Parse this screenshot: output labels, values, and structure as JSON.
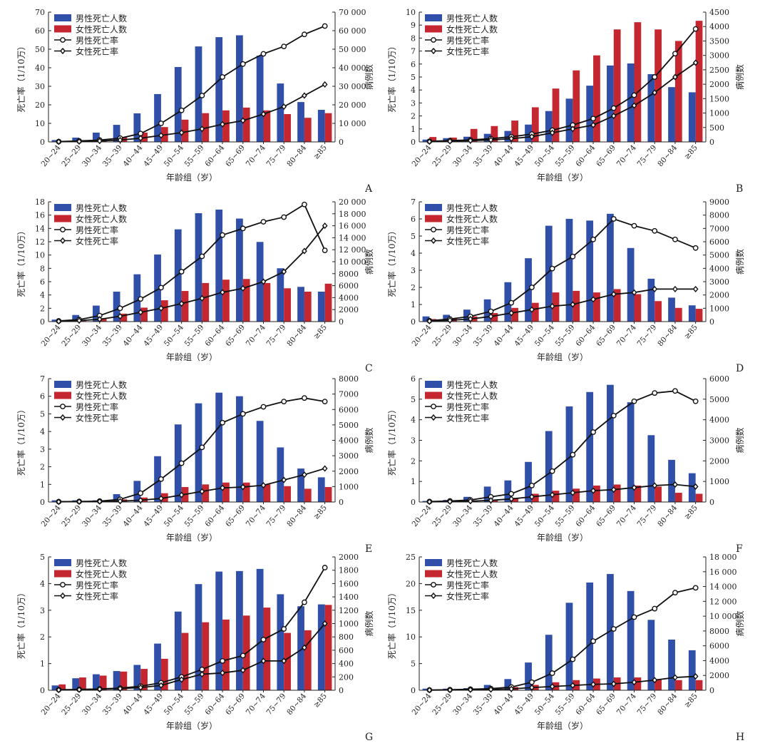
{
  "chart_data": {
    "type": "bar+line",
    "common": {
      "categories": [
        "20~24",
        "25~29",
        "30~34",
        "35~39",
        "40~44",
        "45~49",
        "50~54",
        "55~59",
        "60~64",
        "65~69",
        "70~74",
        "75~79",
        "80~84",
        "≥85"
      ],
      "xlabel": "年龄组（岁）",
      "ylabel_left": "死亡率（1/10万）",
      "ylabel_right": "病例数",
      "legend": [
        "男性死亡人数",
        "女性死亡人数",
        "男性死亡率",
        "女性死亡率"
      ],
      "legend_placement": "top-left",
      "colors": {
        "male_bar": "#2f4fa8",
        "female_bar": "#c4272f",
        "line": "#111111"
      }
    },
    "panels": [
      {
        "label": "A",
        "ylim_left": [
          0,
          70
        ],
        "step_left": 10,
        "ylim_right": [
          0,
          70000
        ],
        "step_right": 10000,
        "male_deaths": [
          1000,
          2300,
          5000,
          9200,
          15400,
          25800,
          40400,
          51500,
          56500,
          57500,
          46500,
          31500,
          21500,
          17300
        ],
        "female_deaths": [
          300,
          500,
          1000,
          2500,
          5000,
          8000,
          12000,
          15500,
          17000,
          18500,
          17000,
          15000,
          13000,
          15500
        ],
        "male_rate": [
          0.2,
          0.5,
          1,
          2,
          4.5,
          10,
          17,
          25,
          35,
          42,
          47.5,
          51.5,
          58,
          62.5
        ],
        "female_rate": [
          0.1,
          0.2,
          0.5,
          1,
          2,
          3.5,
          5,
          7,
          9.5,
          11.5,
          15,
          19,
          25,
          31
        ]
      },
      {
        "label": "B",
        "ylim_left": [
          0,
          10
        ],
        "step_left": 1,
        "ylim_right": [
          0,
          4500
        ],
        "step_right": 500,
        "male_deaths": [
          80,
          130,
          180,
          280,
          380,
          600,
          1070,
          1500,
          1950,
          2650,
          2720,
          2350,
          1900,
          1720
        ],
        "female_deaths": [
          170,
          150,
          450,
          550,
          740,
          1200,
          1850,
          2480,
          3000,
          3900,
          4150,
          3900,
          3500,
          4200
        ],
        "male_rate": [
          0.05,
          0.1,
          0.15,
          0.25,
          0.4,
          0.6,
          0.9,
          1.3,
          1.8,
          2.6,
          3.6,
          5,
          6.8,
          8.7
        ],
        "female_rate": [
          0.02,
          0.05,
          0.1,
          0.15,
          0.25,
          0.4,
          0.7,
          1,
          1.3,
          2,
          2.8,
          3.8,
          5,
          6.1
        ]
      },
      {
        "label": "C",
        "ylim_left": [
          0,
          18
        ],
        "step_left": 2,
        "ylim_right": [
          0,
          20000
        ],
        "step_right": 2000,
        "male_deaths": [
          330,
          1100,
          2670,
          5000,
          7900,
          11200,
          15400,
          18100,
          18700,
          17200,
          13300,
          8900,
          5800,
          5000
        ],
        "female_deaths": [
          110,
          220,
          560,
          1330,
          2330,
          3560,
          5110,
          6440,
          7000,
          7110,
          6440,
          5560,
          5000,
          6330
        ],
        "male_rate": [
          0.1,
          0.3,
          0.9,
          2,
          3.4,
          5.1,
          7.5,
          9.8,
          13,
          14,
          15,
          15.7,
          17.6,
          10.7
        ],
        "female_rate": [
          0.05,
          0.15,
          0.35,
          0.8,
          1.4,
          2,
          2.7,
          3.5,
          4.4,
          5,
          6,
          7.5,
          10.6,
          14.4
        ]
      },
      {
        "label": "D",
        "ylim_left": [
          0,
          7
        ],
        "step_left": 1,
        "ylim_right": [
          0,
          9000
        ],
        "step_right": 1000,
        "male_deaths": [
          390,
          510,
          900,
          1670,
          2960,
          4760,
          7200,
          7720,
          7590,
          8100,
          5530,
          3220,
          1800,
          1220
        ],
        "female_deaths": [
          190,
          260,
          390,
          640,
          1030,
          1410,
          2190,
          2310,
          2190,
          2440,
          2060,
          1540,
          1030,
          960
        ],
        "male_rate": [
          0.05,
          0.15,
          0.3,
          0.6,
          1.1,
          2,
          3.1,
          3.8,
          4.8,
          6,
          5.6,
          5.3,
          4.8,
          4.3
        ],
        "female_rate": [
          0.03,
          0.08,
          0.15,
          0.3,
          0.5,
          0.7,
          0.9,
          1,
          1.3,
          1.6,
          1.7,
          1.9,
          1.9,
          1.9
        ]
      },
      {
        "label": "E",
        "ylim_left": [
          0,
          7
        ],
        "step_left": 1,
        "ylim_right": [
          0,
          8000
        ],
        "step_right": 1000,
        "male_deaths": [
          110,
          110,
          110,
          510,
          1370,
          2970,
          5030,
          6400,
          7090,
          6860,
          5260,
          3540,
          2170,
          1600
        ],
        "female_deaths": [
          60,
          60,
          110,
          170,
          290,
          570,
          970,
          1140,
          1260,
          1260,
          1140,
          1030,
          860,
          970
        ],
        "male_rate": [
          0.02,
          0.03,
          0.05,
          0.15,
          0.5,
          1.3,
          2.2,
          3.1,
          4.5,
          5,
          5.4,
          5.7,
          5.9,
          5.7
        ],
        "female_rate": [
          0.01,
          0.02,
          0.03,
          0.05,
          0.1,
          0.2,
          0.4,
          0.6,
          0.8,
          0.85,
          0.95,
          1.25,
          1.55,
          1.9
        ]
      },
      {
        "label": "F",
        "ylim_left": [
          0,
          6
        ],
        "step_left": 1,
        "ylim_right": [
          0,
          6000
        ],
        "step_right": 1000,
        "male_deaths": [
          50,
          100,
          250,
          750,
          1050,
          1950,
          3450,
          4650,
          5350,
          5700,
          4850,
          3250,
          2050,
          1400
        ],
        "female_deaths": [
          30,
          50,
          80,
          100,
          200,
          400,
          550,
          650,
          800,
          850,
          800,
          750,
          450,
          400
        ],
        "male_rate": [
          0.02,
          0.05,
          0.1,
          0.25,
          0.4,
          0.8,
          1.5,
          2.3,
          3.4,
          4.2,
          4.9,
          5.3,
          5.4,
          4.9
        ],
        "female_rate": [
          0.01,
          0.02,
          0.04,
          0.08,
          0.15,
          0.25,
          0.35,
          0.45,
          0.55,
          0.6,
          0.7,
          0.8,
          0.85,
          0.75
        ]
      },
      {
        "label": "G",
        "ylim_left": [
          0,
          5
        ],
        "step_left": 1,
        "ylim_right": [
          0,
          2000
        ],
        "step_right": 200,
        "male_deaths": [
          72,
          180,
          240,
          288,
          380,
          700,
          1180,
          1592,
          1780,
          1788,
          1820,
          1440,
          1260,
          1288
        ],
        "female_deaths": [
          88,
          192,
          220,
          280,
          320,
          472,
          860,
          1020,
          1060,
          1120,
          1240,
          860,
          900,
          1280
        ],
        "male_rate": [
          0.02,
          0.03,
          0.05,
          0.08,
          0.15,
          0.28,
          0.5,
          0.78,
          1.1,
          1.3,
          1.9,
          2.3,
          3.3,
          4.6
        ],
        "female_rate": [
          0.01,
          0.02,
          0.04,
          0.06,
          0.1,
          0.18,
          0.4,
          0.6,
          0.65,
          0.75,
          1.1,
          1.1,
          1.6,
          2.5
        ]
      },
      {
        "label": "H",
        "ylim_left": [
          0,
          25
        ],
        "step_left": 5,
        "ylim_right": [
          0,
          18000
        ],
        "step_right": 2000,
        "male_deaths": [
          216,
          216,
          288,
          720,
          1512,
          3744,
          7488,
          11808,
          14544,
          15696,
          13392,
          9504,
          6840,
          5400
        ],
        "female_deaths": [
          72,
          72,
          144,
          216,
          432,
          720,
          1080,
          1368,
          1584,
          1728,
          1728,
          1512,
          1368,
          1368
        ],
        "male_rate": [
          0.05,
          0.1,
          0.2,
          0.3,
          0.6,
          1.5,
          3.2,
          5.8,
          9.2,
          11.5,
          13.7,
          15.3,
          18.3,
          19.2
        ],
        "female_rate": [
          0.02,
          0.05,
          0.1,
          0.15,
          0.25,
          0.5,
          0.7,
          0.9,
          1.1,
          1.2,
          1.5,
          1.9,
          2.4,
          2.6
        ]
      }
    ]
  }
}
